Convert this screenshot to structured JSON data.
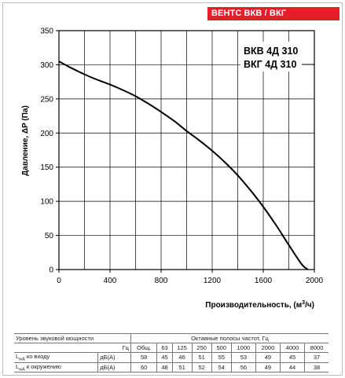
{
  "brand": {
    "label": "ВЕНТС ВКВ / ВКГ",
    "color": "#e3202a"
  },
  "chart_data": {
    "type": "line",
    "title_lines": [
      "ВКВ 4Д 310",
      "ВКГ 4Д 310"
    ],
    "xlabel": "Производительность, (м³/ч)",
    "ylabel": "Давление, ΔP (Па)",
    "xlim": [
      0,
      2000
    ],
    "ylim": [
      0,
      350
    ],
    "x_ticks": [
      0,
      400,
      800,
      1200,
      1600,
      2000
    ],
    "y_ticks": [
      0,
      50,
      100,
      150,
      200,
      250,
      300,
      350
    ],
    "x_grid_step": 200,
    "y_grid_step": 50,
    "grid": true,
    "series": [
      {
        "color": "#000000",
        "x": [
          0,
          100,
          200,
          300,
          400,
          500,
          600,
          700,
          800,
          900,
          1000,
          1100,
          1200,
          1300,
          1400,
          1500,
          1600,
          1700,
          1800,
          1900,
          1950
        ],
        "y": [
          305,
          295,
          286,
          278,
          271,
          263,
          254,
          243,
          231,
          218,
          203,
          189,
          174,
          157,
          138,
          116,
          92,
          65,
          36,
          8,
          0
        ]
      }
    ]
  },
  "sound_table": {
    "rows": [
      [
        "Уровень звуковой мощности",
        "",
        "Октавные полосы частот, Гц"
      ],
      [
        "",
        "Гц",
        "Общ.",
        "63",
        "125",
        "250",
        "500",
        "1000",
        "2000",
        "4000",
        "8000"
      ],
      [
        "L_wA ко входу",
        "дБ(А)",
        "58",
        "45",
        "46",
        "51",
        "55",
        "53",
        "49",
        "45",
        "37"
      ],
      [
        "L_wA к окружению",
        "дБ(А)",
        "60",
        "48",
        "51",
        "52",
        "54",
        "56",
        "49",
        "44",
        "38"
      ]
    ]
  }
}
